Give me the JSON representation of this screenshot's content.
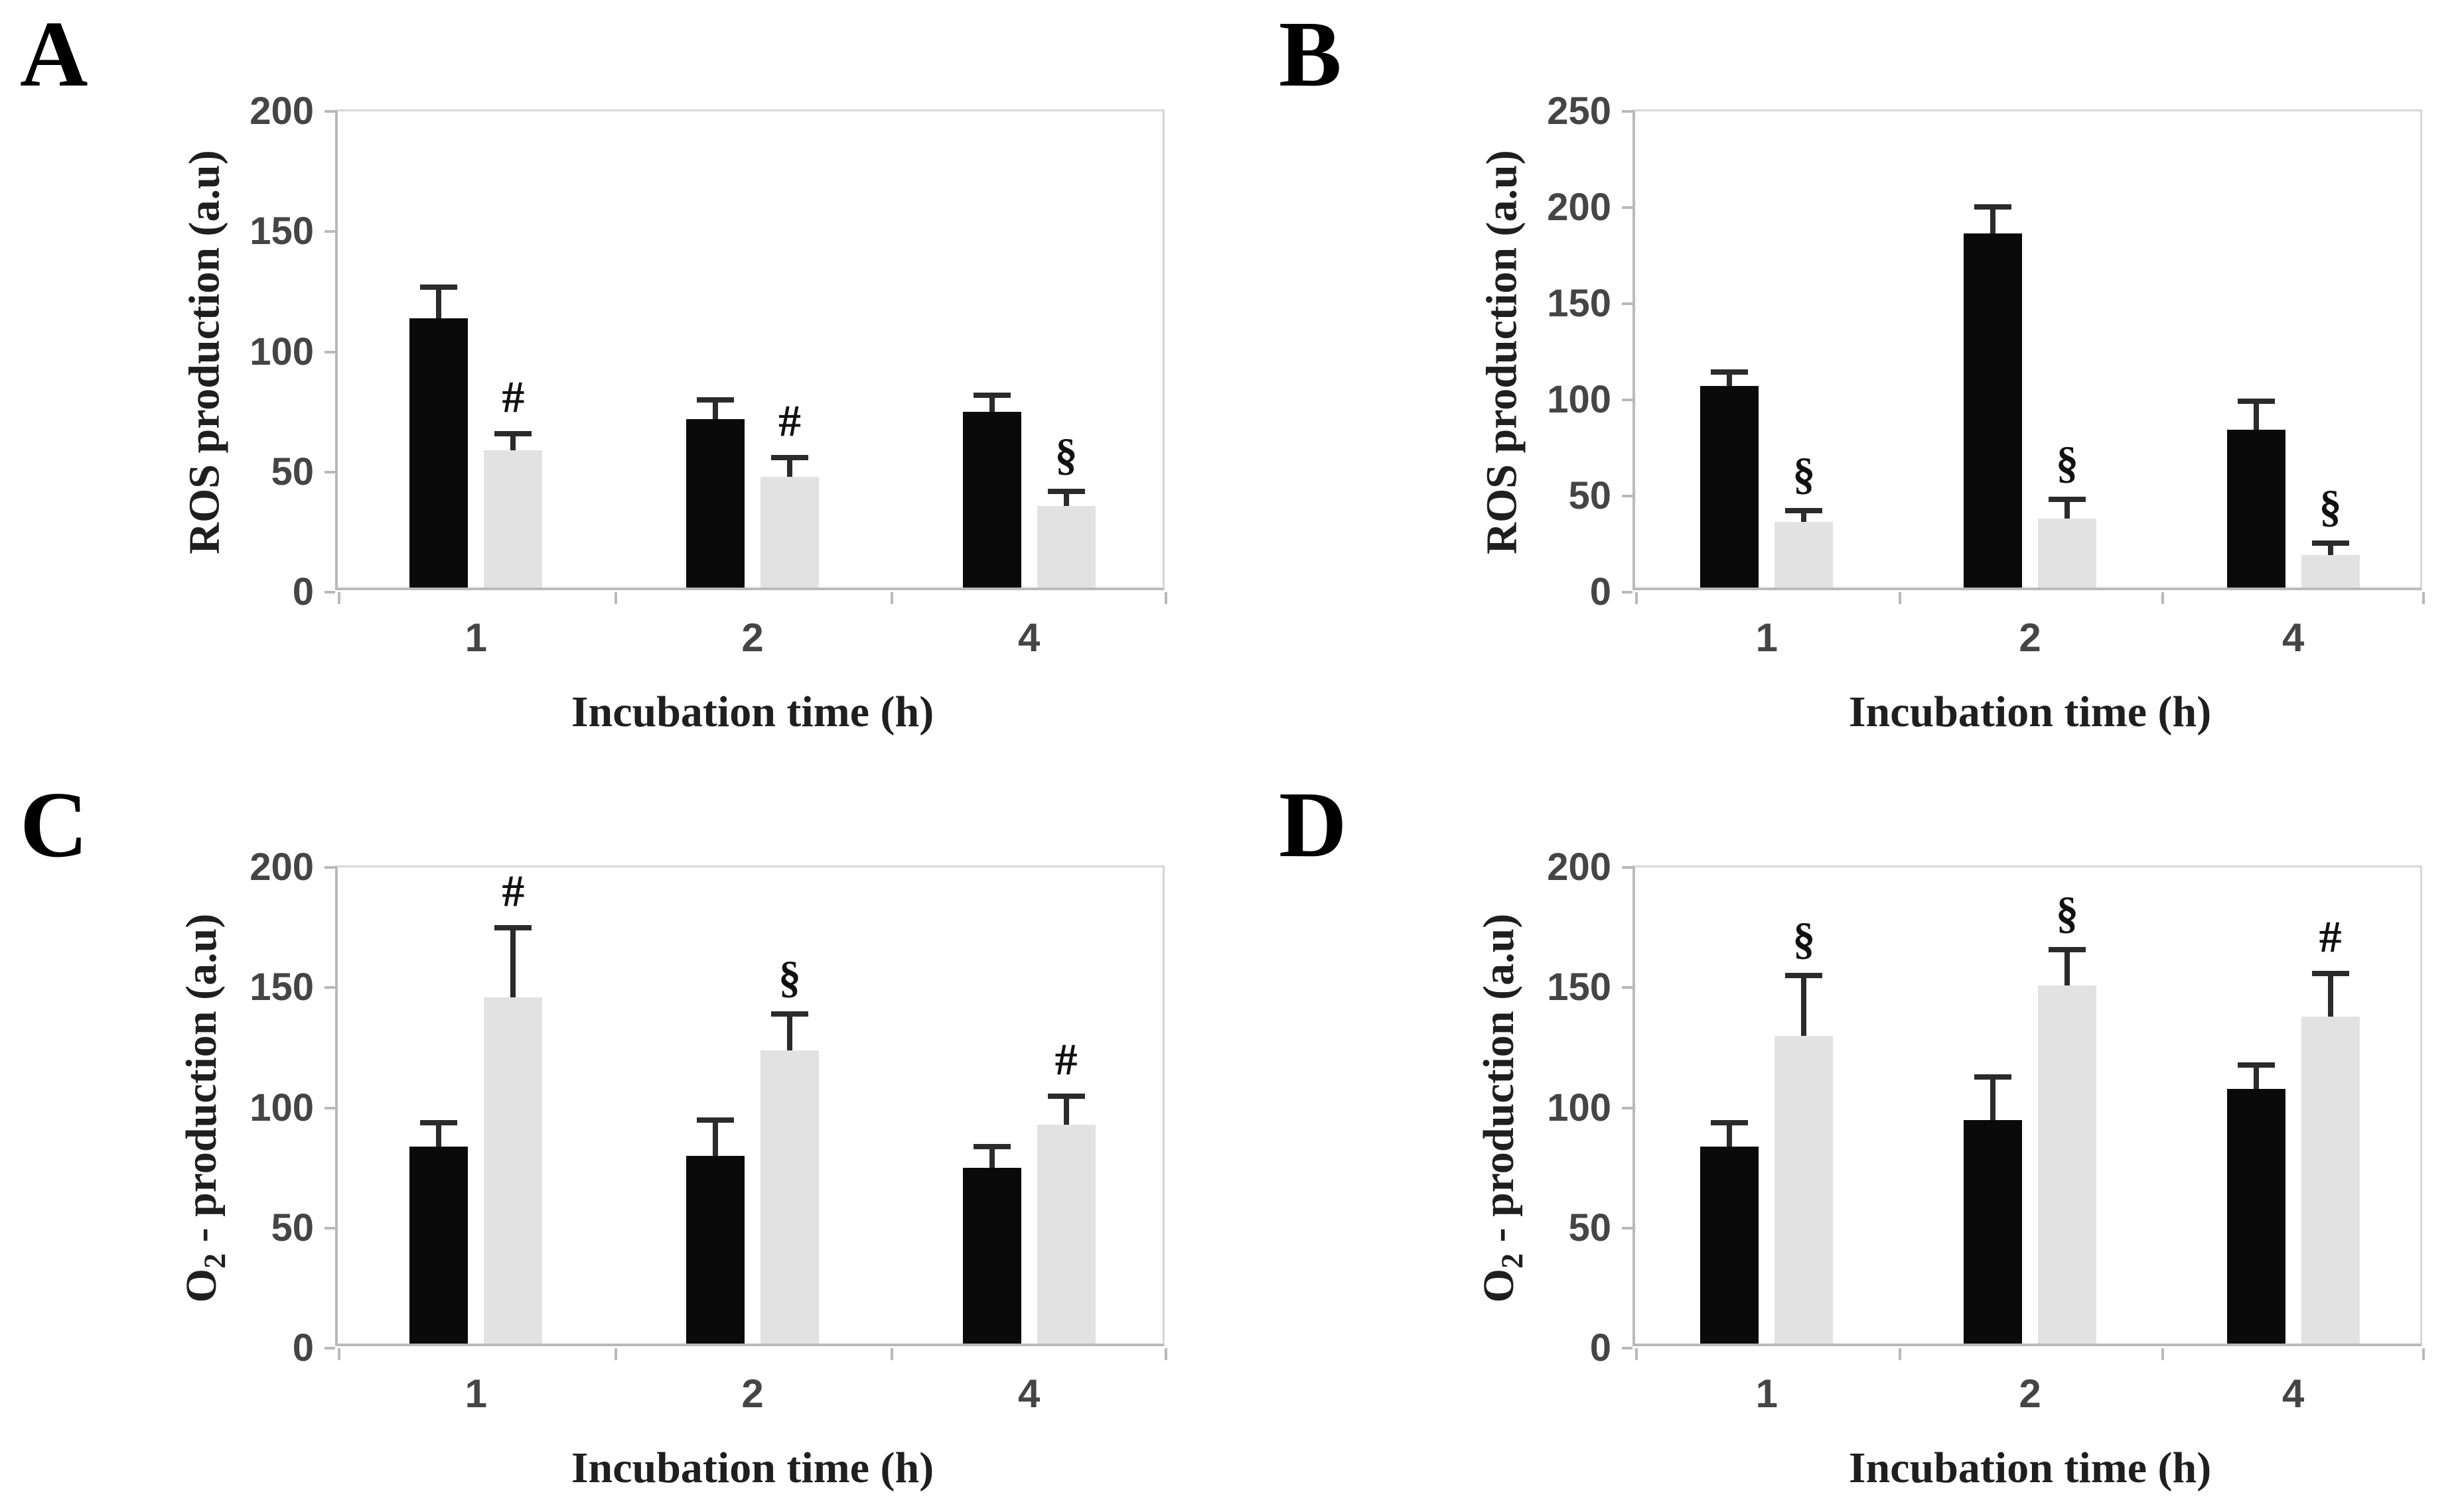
{
  "figure": {
    "background": "#ffffff",
    "panel_letters": [
      "A",
      "B",
      "C",
      "D"
    ]
  },
  "colors": {
    "bar_black": "#0a0a0a",
    "bar_gray": "#e2e2e2",
    "error_bar": "#2b2b2b",
    "axis_line": "#b9b9b9",
    "plot_border": "#d7d7d7",
    "tick_text": "#454545",
    "axis_title_text": "#1f1f1f",
    "annotation_text": "#111111",
    "panel_letter_text": "#000000"
  },
  "chart_data": [
    {
      "type": "bar",
      "panel_label": "A",
      "title": "",
      "xlabel": "Incubation time (h)",
      "ylabel": "ROS production (a.u)",
      "ylabel_parts": {
        "pre": "",
        "sub": "",
        "rest": "ROS production (a.u)"
      },
      "ylim": [
        0,
        200
      ],
      "yticks": [
        0,
        50,
        100,
        150,
        200
      ],
      "categories": [
        "1",
        "2",
        "4"
      ],
      "grid": false,
      "legend": "none",
      "series": [
        {
          "name": "black",
          "color_key": "bar_black",
          "values": [
            112,
            70,
            73
          ],
          "errors": [
            13,
            8,
            7
          ],
          "annotations": [
            "",
            "",
            ""
          ]
        },
        {
          "name": "gray",
          "color_key": "bar_gray",
          "values": [
            57,
            46,
            34
          ],
          "errors": [
            7,
            8,
            6
          ],
          "annotations": [
            "#",
            "#",
            "§"
          ]
        }
      ]
    },
    {
      "type": "bar",
      "panel_label": "B",
      "title": "",
      "xlabel": "Incubation time (h)",
      "ylabel": "ROS production (a.u)",
      "ylabel_parts": {
        "pre": "",
        "sub": "",
        "rest": "ROS production (a.u)"
      },
      "ylim": [
        0,
        250
      ],
      "yticks": [
        0,
        50,
        100,
        150,
        200,
        250
      ],
      "categories": [
        "1",
        "2",
        "4"
      ],
      "grid": false,
      "legend": "none",
      "series": [
        {
          "name": "black",
          "color_key": "bar_black",
          "values": [
            105,
            184,
            82
          ],
          "errors": [
            7,
            14,
            15
          ],
          "annotations": [
            "",
            "",
            ""
          ]
        },
        {
          "name": "gray",
          "color_key": "bar_gray",
          "values": [
            34,
            36,
            17
          ],
          "errors": [
            6,
            10,
            6
          ],
          "annotations": [
            "§",
            "§",
            "§"
          ]
        }
      ]
    },
    {
      "type": "bar",
      "panel_label": "C",
      "title": "",
      "xlabel": "Incubation time (h)",
      "ylabel": "O2 - production (a.u)",
      "ylabel_parts": {
        "pre": "O",
        "sub": "2",
        "rest": " - production (a.u)"
      },
      "ylim": [
        0,
        200
      ],
      "yticks": [
        0,
        50,
        100,
        150,
        200
      ],
      "categories": [
        "1",
        "2",
        "4"
      ],
      "grid": false,
      "legend": "none",
      "series": [
        {
          "name": "black",
          "color_key": "bar_black",
          "values": [
            82,
            78,
            73
          ],
          "errors": [
            10,
            15,
            9
          ],
          "annotations": [
            "",
            "",
            ""
          ]
        },
        {
          "name": "gray",
          "color_key": "bar_gray",
          "values": [
            144,
            122,
            91
          ],
          "errors": [
            29,
            15,
            12
          ],
          "annotations": [
            "#",
            "§",
            "#"
          ]
        }
      ]
    },
    {
      "type": "bar",
      "panel_label": "D",
      "title": "",
      "xlabel": "Incubation time (h)",
      "ylabel": "O2 - production (a.u)",
      "ylabel_parts": {
        "pre": "O",
        "sub": "2",
        "rest": " - production (a.u)"
      },
      "ylim": [
        0,
        200
      ],
      "yticks": [
        0,
        50,
        100,
        150,
        200
      ],
      "categories": [
        "1",
        "2",
        "4"
      ],
      "grid": false,
      "legend": "none",
      "series": [
        {
          "name": "black",
          "color_key": "bar_black",
          "values": [
            82,
            93,
            106
          ],
          "errors": [
            10,
            18,
            10
          ],
          "annotations": [
            "",
            "",
            ""
          ]
        },
        {
          "name": "gray",
          "color_key": "bar_gray",
          "values": [
            128,
            149,
            136
          ],
          "errors": [
            25,
            15,
            18
          ],
          "annotations": [
            "§",
            "§",
            "#"
          ]
        }
      ]
    }
  ]
}
